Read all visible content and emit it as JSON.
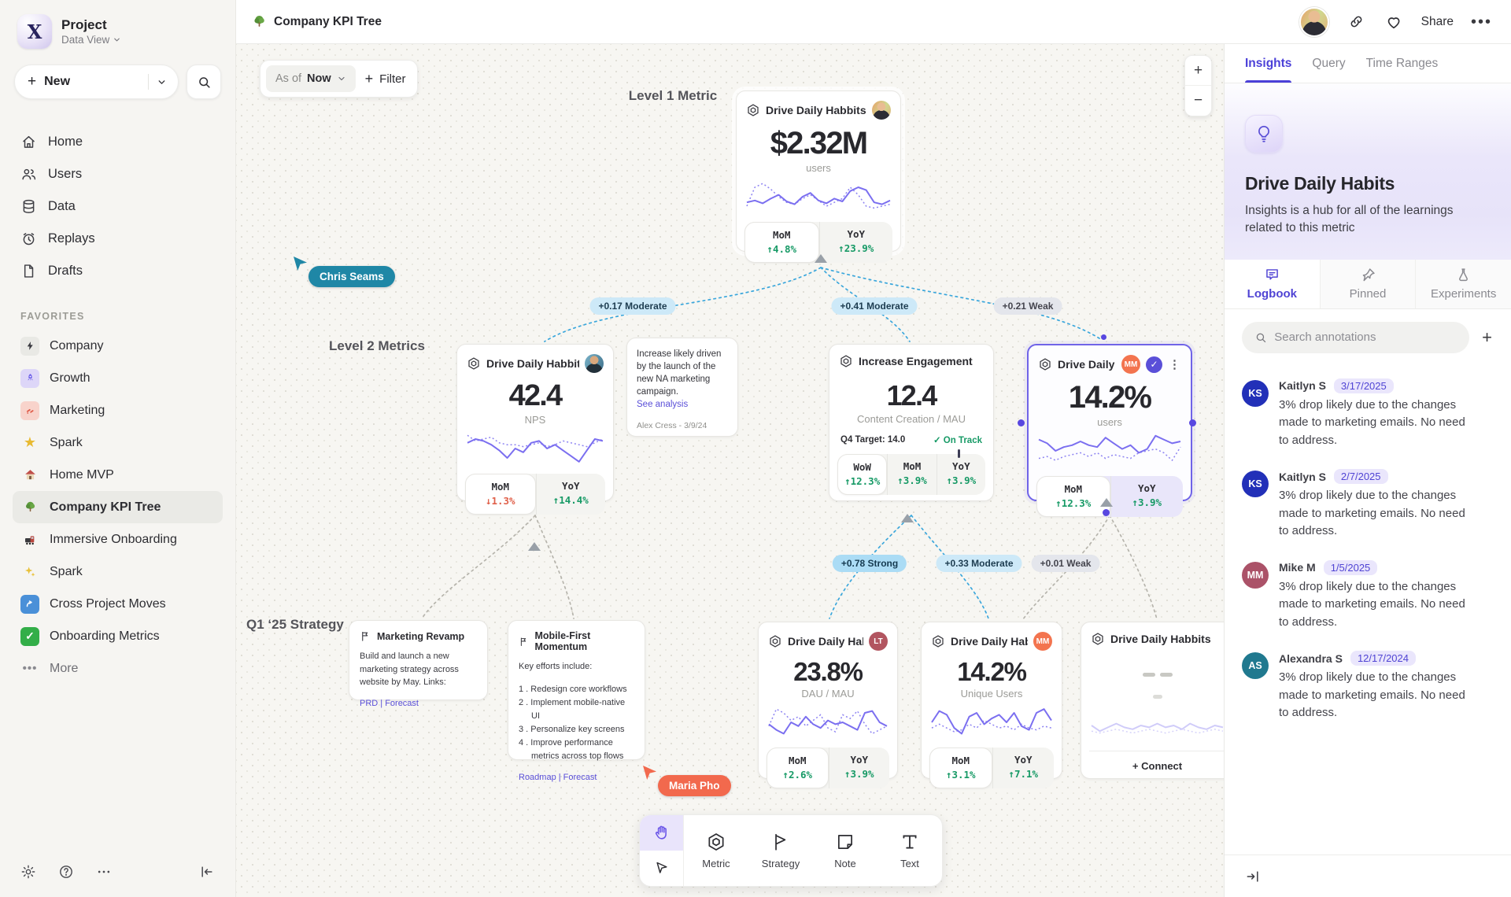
{
  "colors": {
    "accent": "#5a4fd8",
    "green": "#179a66",
    "red": "#e0604a",
    "edge_blue": "#3ba7dc",
    "teal_cursor": "#1f87a6",
    "orange_cursor": "#f2694d"
  },
  "sidebar": {
    "project_name": "Project",
    "project_view": "Data View",
    "new_label": "New",
    "nav": [
      {
        "label": "Home"
      },
      {
        "label": "Users"
      },
      {
        "label": "Data"
      },
      {
        "label": "Replays"
      },
      {
        "label": "Drafts"
      }
    ],
    "favorites_header": "FAVORITES",
    "favorites": [
      {
        "label": "Company"
      },
      {
        "label": "Growth"
      },
      {
        "label": "Marketing"
      },
      {
        "label": "Spark"
      },
      {
        "label": "Home MVP"
      },
      {
        "label": "Company KPI Tree"
      },
      {
        "label": "Immersive Onboarding"
      },
      {
        "label": "Spark"
      },
      {
        "label": "Cross Project Moves"
      },
      {
        "label": "Onboarding Metrics"
      }
    ],
    "more_label": "More"
  },
  "topbar": {
    "title": "Company KPI Tree",
    "share_label": "Share"
  },
  "canvas": {
    "as_of_label": "As of",
    "as_of_value": "Now",
    "filter_label": "Filter",
    "zoom_in": "+",
    "zoom_out": "−",
    "levels": {
      "l1": "Level 1 Metric",
      "l2": "Level 2 Metrics",
      "l3": "Q1 ‘25 Strategy"
    },
    "cursors": {
      "c1": "Chris Seams",
      "c2": "Maria Pho"
    },
    "edges": {
      "e1": "+0.17 Moderate",
      "e2": "+0.41 Moderate",
      "e3": "+0.21 Weak",
      "e4": "+0.78 Strong",
      "e5": "+0.33 Moderate",
      "e6": "+0.01 Weak"
    },
    "l1": {
      "title": "Drive Daily Habbits",
      "value": "$2.32M",
      "unit": "users",
      "mom_label": "MoM",
      "mom": "↑4.8%",
      "yoy_label": "YoY",
      "yoy": "↑23.9%",
      "spark": {
        "solid": [
          26,
          24,
          27,
          22,
          18,
          25,
          28,
          20,
          16,
          24,
          27,
          22,
          25,
          14,
          10,
          13,
          26,
          28,
          24
        ],
        "dotted": [
          30,
          10,
          6,
          12,
          20,
          26,
          28,
          22,
          18,
          24,
          30,
          26,
          22,
          10,
          18,
          30,
          32,
          30,
          28
        ]
      }
    },
    "l2a": {
      "title": "Drive Daily Habbits",
      "value": "42.4",
      "unit": "NPS",
      "mom_label": "MoM",
      "mom": "↓1.3%",
      "yoy_label": "YoY",
      "yoy": "↑14.4%",
      "spark": {
        "solid": [
          14,
          10,
          12,
          16,
          22,
          30,
          20,
          24,
          14,
          12,
          20,
          16,
          22,
          28,
          34,
          22,
          10,
          12
        ],
        "dotted": [
          6,
          12,
          10,
          8,
          14,
          16,
          16,
          18,
          16,
          14,
          18,
          16,
          12,
          14,
          16,
          18,
          14,
          10
        ]
      }
    },
    "note": {
      "body": "Increase likely driven by the launch of the new NA marketing campaign.",
      "link": "See analysis",
      "author": "Alex Cress - 3/9/24"
    },
    "l2b": {
      "title": "Increase Engagement",
      "value": "12.4",
      "unit": "Content Creation / MAU",
      "target": "Q4 Target: 14.0",
      "status": "✓ On Track",
      "wow_label": "WoW",
      "wow": "↑12.3%",
      "mom_label": "MoM",
      "mom": "↑3.9%",
      "yoy_label": "YoY",
      "yoy": "↑3.9%"
    },
    "l2c": {
      "title": "Drive Daily Habb..",
      "badge": "MM",
      "check": "✓",
      "value": "14.2%",
      "unit": "users",
      "mom_label": "MoM",
      "mom": "↑12.3%",
      "yoy_label": "YoY",
      "yoy": "↑3.9%",
      "spark": {
        "solid": [
          8,
          12,
          20,
          16,
          14,
          10,
          14,
          16,
          6,
          12,
          18,
          14,
          22,
          18,
          4,
          8,
          12,
          10
        ],
        "dotted": [
          28,
          26,
          30,
          26,
          24,
          22,
          26,
          22,
          28,
          24,
          26,
          28,
          22,
          20,
          18,
          22,
          30,
          16
        ]
      }
    },
    "s1": {
      "title": "Marketing Revamp",
      "body": "Build and launch a new marketing strategy across website by May. Links:",
      "links": "PRD | Forecast"
    },
    "s2": {
      "title": "Mobile-First Momentum",
      "intro": "Key efforts include:",
      "items": [
        "Redesign core workflows",
        "Implement mobile-native UI",
        "Personalize key screens",
        "Improve performance metrics across top flows"
      ],
      "links": "Roadmap | Forecast"
    },
    "l3a": {
      "title": "Drive Daily Habbits",
      "badge": "LT",
      "value": "23.8%",
      "unit": "DAU / MAU",
      "mom_label": "MoM",
      "mom": "↑2.6%",
      "yoy_label": "YoY",
      "yoy": "↑3.9%",
      "spark": {
        "solid": [
          22,
          28,
          32,
          20,
          24,
          14,
          22,
          26,
          18,
          22,
          20,
          24,
          28,
          10,
          8,
          20,
          24
        ],
        "dotted": [
          24,
          6,
          10,
          18,
          14,
          24,
          18,
          12,
          26,
          30,
          12,
          16,
          8,
          22,
          32,
          28,
          24
        ]
      }
    },
    "l3b": {
      "title": "Drive Daily Habbits",
      "badge": "MM",
      "value": "14.2%",
      "unit": "Unique Users",
      "mom_label": "MoM",
      "mom": "↑3.1%",
      "yoy_label": "YoY",
      "yoy": "↑7.1%",
      "spark": {
        "solid": [
          20,
          8,
          12,
          26,
          32,
          14,
          10,
          22,
          16,
          12,
          20,
          10,
          24,
          28,
          10,
          6,
          18
        ],
        "dotted": [
          26,
          22,
          26,
          30,
          28,
          22,
          26,
          18,
          22,
          26,
          24,
          28,
          22,
          26,
          28,
          24,
          26
        ]
      }
    },
    "l3c": {
      "title": "Drive Daily Habbits",
      "connect_label": "Connect",
      "spark": {
        "solid": [
          20,
          26,
          22,
          18,
          22,
          24,
          20,
          22,
          18,
          22,
          20,
          24,
          18,
          22,
          24,
          20,
          22
        ],
        "dotted": [
          26,
          28,
          26,
          24,
          26,
          28,
          26,
          24,
          26,
          28,
          26,
          24,
          26,
          28,
          26,
          24,
          26
        ]
      }
    }
  },
  "tools": {
    "metric": "Metric",
    "strategy": "Strategy",
    "note": "Note",
    "text": "Text"
  },
  "panel": {
    "tabs": {
      "insights": "Insights",
      "query": "Query",
      "time_ranges": "Time Ranges"
    },
    "title": "Drive Daily Habits",
    "description": "Insights is a hub for all of the learnings related to this metric",
    "subtabs": {
      "logbook": "Logbook",
      "pinned": "Pinned",
      "experiments": "Experiments"
    },
    "search_placeholder": "Search annotations",
    "add_label": "+",
    "annotations": [
      {
        "initials": "KS",
        "name": "Kaitlyn S",
        "date": "3/17/2025",
        "text": "3% drop likely due to the changes made to marketing emails. No need to address.",
        "color": "#2230b8"
      },
      {
        "initials": "KS",
        "name": "Kaitlyn S",
        "date": "2/7/2025",
        "text": "3% drop likely due to the changes made to marketing emails. No need to address.",
        "color": "#2230b8"
      },
      {
        "initials": "MM",
        "name": "Mike M",
        "date": "1/5/2025",
        "text": "3% drop likely due to the changes made to marketing emails. No need to address.",
        "color": "#ab5268"
      },
      {
        "initials": "AS",
        "name": "Alexandra S",
        "date": "12/17/2024",
        "text": "3% drop likely due to the changes made to marketing emails. No need to address.",
        "color": "#20798f"
      }
    ]
  }
}
